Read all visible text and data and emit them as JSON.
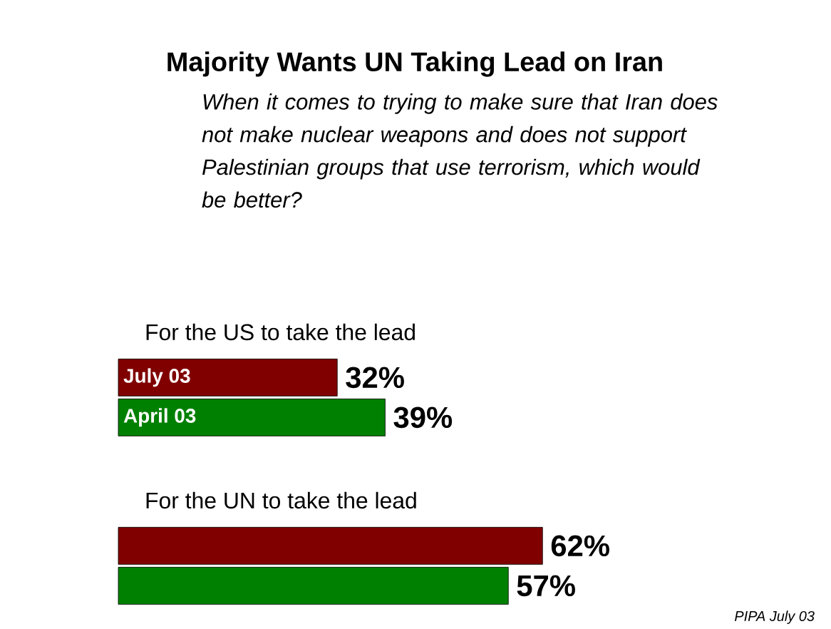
{
  "chart_data": {
    "type": "bar",
    "orientation": "horizontal",
    "title": "Majority Wants UN Taking Lead on Iran",
    "subtitle": "When it comes to trying to make sure that Iran does not make nuclear weapons and does not support Palestinian groups that use terrorism, which would be better?",
    "categories": [
      "For the US to take the lead",
      "For the UN to take the lead"
    ],
    "series": [
      {
        "name": "July 03",
        "color": "#800000",
        "values": [
          32,
          62
        ],
        "value_labels": [
          "32%",
          "62%"
        ]
      },
      {
        "name": "April 03",
        "color": "#008000",
        "values": [
          39,
          57
        ],
        "value_labels": [
          "39%",
          "57%"
        ]
      }
    ],
    "annotations": [
      "PIPA July 03"
    ]
  }
}
